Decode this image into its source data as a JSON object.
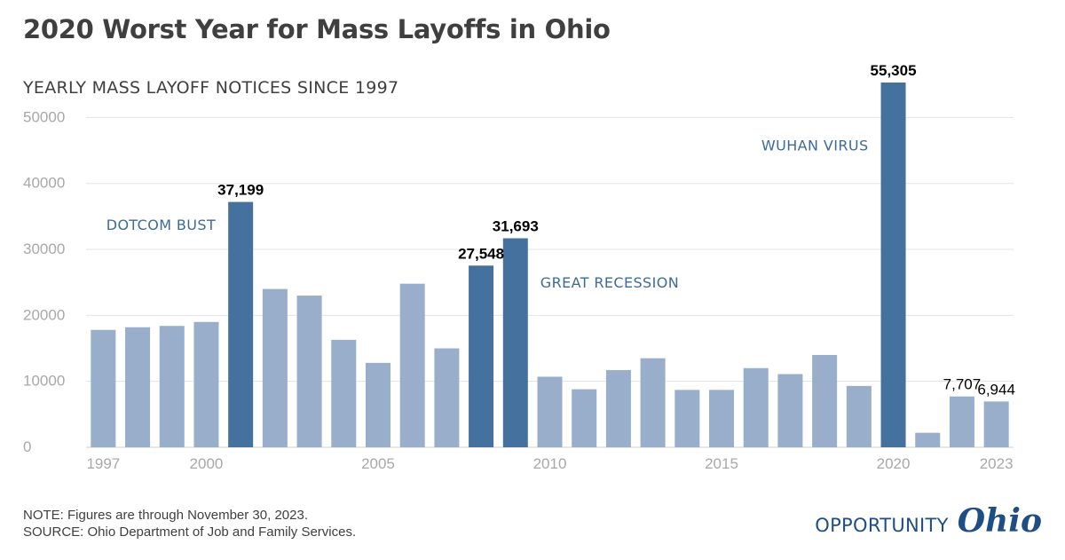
{
  "header": {
    "title": "2020 Worst Year for Mass Layoffs in Ohio",
    "subtitle": "YEARLY MASS LAYOFF NOTICES SINCE 1997"
  },
  "footer": {
    "note": "NOTE: Figures are through November 30, 2023.",
    "source": "SOURCE: Ohio Department of Job and Family Services.",
    "logo_word": "OPPORTUNITY",
    "logo_script": "Ohio"
  },
  "colors": {
    "bar_normal": "#98aecb",
    "bar_highlight": "#44719e",
    "annotation": "#3d6a98",
    "grid": "#e3e3e3",
    "axis_text": "#a8a8a8",
    "label_text": "#000000"
  },
  "chart_data": {
    "type": "bar",
    "title": "",
    "xlabel": "",
    "ylabel": "",
    "ylim": [
      0,
      55305
    ],
    "yticks": [
      0,
      10000,
      20000,
      30000,
      40000,
      50000
    ],
    "xtick_labels": [
      "1997",
      "2000",
      "2005",
      "2010",
      "2015",
      "2020",
      "2023"
    ],
    "categories": [
      "1997",
      "1998",
      "1999",
      "2000",
      "2001",
      "2002",
      "2003",
      "2004",
      "2005",
      "2006",
      "2007",
      "2008",
      "2009",
      "2010",
      "2011",
      "2012",
      "2013",
      "2014",
      "2015",
      "2016",
      "2017",
      "2018",
      "2019",
      "2020",
      "2021",
      "2022",
      "2023"
    ],
    "values": [
      17800,
      18200,
      18400,
      19000,
      37199,
      24000,
      23000,
      16300,
      12800,
      24800,
      15000,
      27548,
      31693,
      10700,
      8800,
      11700,
      13500,
      8700,
      8700,
      12000,
      11100,
      14000,
      9300,
      55305,
      2200,
      7707,
      6944
    ],
    "highlighted": [
      "2001",
      "2008",
      "2009",
      "2020"
    ],
    "data_labels": [
      {
        "category": "2001",
        "text": "37,199",
        "bold": true
      },
      {
        "category": "2008",
        "text": "27,548",
        "bold": true
      },
      {
        "category": "2009",
        "text": "31,693",
        "bold": true
      },
      {
        "category": "2020",
        "text": "55,305",
        "bold": true
      },
      {
        "category": "2022",
        "text": "7,707",
        "bold": false
      },
      {
        "category": "2023",
        "text": "6,944",
        "bold": false
      }
    ],
    "annotations": [
      {
        "text": "DOTCOM BUST",
        "near": "2001",
        "side": "left",
        "at_value": 33000
      },
      {
        "text": "GREAT RECESSION",
        "near": "2009",
        "side": "right",
        "at_value": 24200
      },
      {
        "text": "WUHAN VIRUS",
        "near": "2020",
        "side": "left",
        "at_value": 45000
      }
    ],
    "grid": true,
    "legend": "none"
  }
}
